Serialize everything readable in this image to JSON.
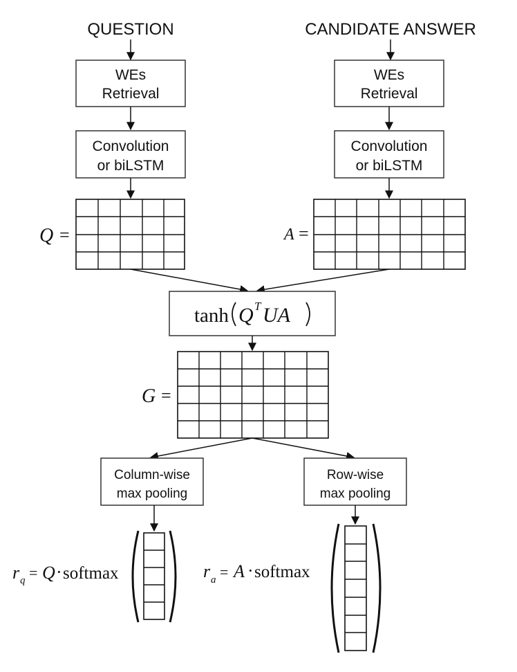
{
  "headers": {
    "question": "QUESTION",
    "candidate_answer": "CANDIDATE ANSWER"
  },
  "boxes": {
    "q_retrieval": [
      "WEs",
      "Retrieval"
    ],
    "a_retrieval": [
      "WEs",
      "Retrieval"
    ],
    "q_encoder": [
      "Convolution",
      "or biLSTM"
    ],
    "a_encoder": [
      "Convolution",
      "or biLSTM"
    ],
    "col_pool": [
      "Column-wise",
      "max pooling"
    ],
    "row_pool": [
      "Row-wise",
      "max pooling"
    ]
  },
  "labels": {
    "q_matrix": "Q",
    "a_matrix": "A",
    "g_matrix": "G",
    "equals": "=",
    "tanh_func": "tanh",
    "tanh_q": "Q",
    "tanh_t": "T",
    "tanh_ua": "UA",
    "rq_r": "r",
    "rq_sub": "q",
    "rq_rhs_var": "Q",
    "ra_r": "r",
    "ra_sub": "a",
    "ra_rhs_var": "A",
    "dot": "·",
    "softmax": "softmax"
  }
}
